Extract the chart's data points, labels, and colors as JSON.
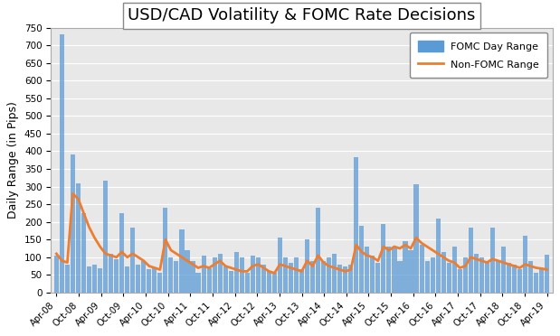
{
  "title": "USD/CAD Volatility & FOMC Rate Decisions",
  "ylabel": "Daily Range (in Pips)",
  "ylim": [
    0,
    750
  ],
  "yticks": [
    0,
    50,
    100,
    150,
    200,
    250,
    300,
    350,
    400,
    450,
    500,
    550,
    600,
    650,
    700,
    750
  ],
  "background_color": "#e8e8e8",
  "bar_color": "#5b9bd5",
  "line_color": "#ed7d31",
  "title_fontsize": 13,
  "axis_label_fontsize": 9,
  "tick_labels": [
    "Apr-08",
    "Oct-08",
    "Apr-09",
    "Oct-09",
    "Apr-10",
    "Oct-10",
    "Apr-11",
    "Oct-11",
    "Apr-12",
    "Oct-12",
    "Apr-13",
    "Oct-13",
    "Apr-14",
    "Oct-14",
    "Apr-15",
    "Oct-15",
    "Apr-16",
    "Oct-16",
    "Apr-17",
    "Oct-17",
    "Apr-18",
    "Oct-18",
    "Apr-19"
  ],
  "fomc_bars": [
    105,
    730,
    80,
    390,
    310,
    225,
    75,
    80,
    70,
    318,
    110,
    95,
    225,
    75,
    185,
    80,
    90,
    65,
    70,
    55,
    240,
    100,
    90,
    178,
    120,
    90,
    55,
    105,
    70,
    100,
    110,
    75,
    60,
    115,
    100,
    55,
    105,
    100,
    80,
    60,
    55,
    155,
    100,
    85,
    100,
    65,
    150,
    90,
    240,
    90,
    100,
    110,
    80,
    75,
    80,
    383,
    190,
    130,
    105,
    85,
    195,
    130,
    130,
    90,
    145,
    120,
    307,
    135,
    90,
    100,
    210,
    115,
    85,
    130,
    65,
    100,
    185,
    110,
    100,
    90,
    185,
    90,
    130,
    85,
    80,
    65,
    160,
    90,
    55,
    70,
    108
  ],
  "fomc_line": [
    110,
    90,
    85,
    280,
    265,
    225,
    185,
    155,
    130,
    110,
    105,
    100,
    115,
    100,
    110,
    100,
    90,
    75,
    70,
    65,
    150,
    120,
    110,
    100,
    90,
    80,
    70,
    75,
    70,
    80,
    90,
    75,
    70,
    65,
    60,
    60,
    75,
    80,
    70,
    60,
    55,
    80,
    75,
    70,
    65,
    60,
    90,
    75,
    105,
    85,
    75,
    70,
    65,
    60,
    65,
    135,
    115,
    105,
    100,
    90,
    130,
    120,
    130,
    125,
    135,
    125,
    155,
    140,
    130,
    120,
    110,
    100,
    90,
    85,
    70,
    75,
    100,
    95,
    90,
    85,
    95,
    90,
    85,
    80,
    75,
    70,
    80,
    75,
    70,
    68,
    65
  ],
  "legend_bar_label": "FOMC Day Range",
  "legend_line_label": "Non-FOMC Range",
  "n_ticks": 23,
  "tick_positions_frac": [
    0,
    1,
    2,
    3,
    4,
    5,
    6,
    7,
    8,
    9,
    10,
    11,
    12,
    13,
    14,
    15,
    16,
    17,
    18,
    19,
    20,
    21,
    22
  ]
}
